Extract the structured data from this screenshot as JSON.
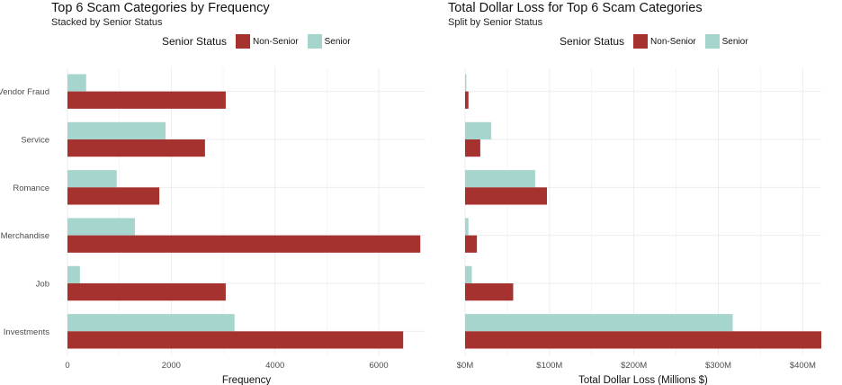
{
  "colors": {
    "non_senior": "#a5322f",
    "senior": "#a6d5cd",
    "grid": "#ebebeb"
  },
  "chart_data": [
    {
      "type": "bar",
      "orientation": "horizontal",
      "title": "Top 6 Scam Categories by Frequency",
      "subtitle": "Stacked by Senior Status",
      "legend_title": "Senior Status",
      "legend_position": "top",
      "categories": [
        "Vendor Fraud",
        "Service",
        "Romance",
        "Merchandise",
        "Job",
        "Investments"
      ],
      "series": [
        {
          "name": "Non-Senior",
          "values": [
            3050,
            2650,
            1770,
            6800,
            3050,
            6470
          ]
        },
        {
          "name": "Senior",
          "values": [
            360,
            1890,
            950,
            1300,
            240,
            3220
          ]
        }
      ],
      "xlabel": "Frequency",
      "ylabel": "",
      "xlim": [
        0,
        6900
      ],
      "xticks": [
        0,
        2000,
        4000,
        6000
      ],
      "xtick_labels": [
        "0",
        "2000",
        "4000",
        "6000"
      ],
      "grid": true
    },
    {
      "type": "bar",
      "orientation": "horizontal",
      "title": "Total Dollar Loss for Top 6 Scam Categories",
      "subtitle": "Split by Senior Status",
      "legend_title": "Senior Status",
      "legend_position": "top",
      "categories": [
        "Vendor Fraud",
        "Service",
        "Romance",
        "Merchandise",
        "Job",
        "Investments"
      ],
      "series": [
        {
          "name": "Non-Senior",
          "values": [
            4,
            18,
            97,
            14,
            57,
            422
          ]
        },
        {
          "name": "Senior",
          "values": [
            1.5,
            31,
            83,
            4,
            8,
            317
          ]
        }
      ],
      "xlabel": "Total Dollar Loss (Millions $)",
      "ylabel": "",
      "xlim": [
        0,
        422
      ],
      "xticks": [
        0,
        100,
        200,
        300,
        400
      ],
      "xtick_labels": [
        "$0M",
        "$100M",
        "$200M",
        "$300M",
        "$400M"
      ],
      "grid": true
    }
  ]
}
